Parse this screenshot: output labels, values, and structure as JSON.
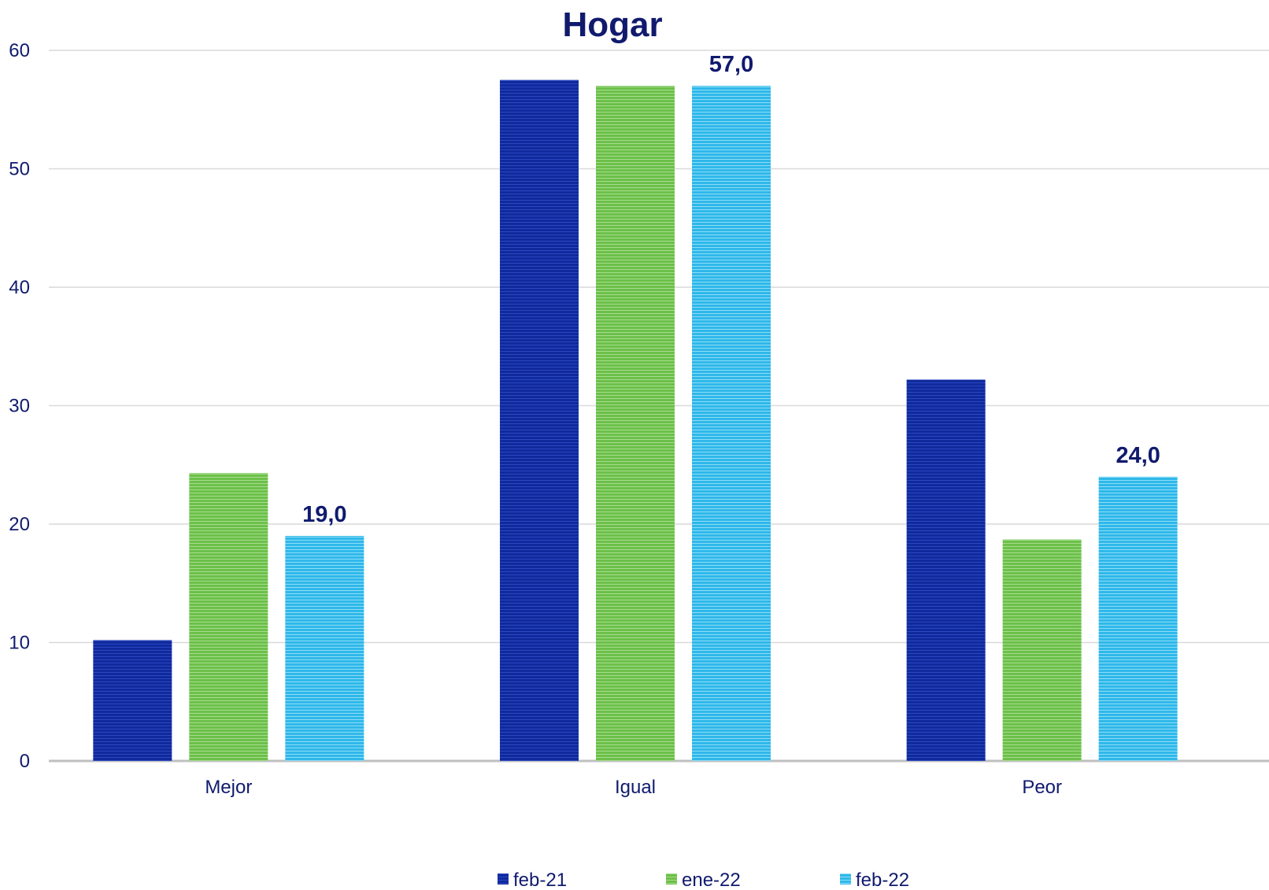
{
  "chart_data": {
    "type": "bar",
    "title": "Hogar",
    "xlabel": "",
    "ylabel": "",
    "ylim": [
      0,
      60
    ],
    "yticks": [
      "0",
      "10",
      "20",
      "30",
      "40",
      "50",
      "60"
    ],
    "categories": [
      "Mejor",
      "Igual",
      "Peor"
    ],
    "series": [
      {
        "name": "feb-21",
        "color": "#102a9c",
        "values": [
          10.2,
          57.5,
          32.2
        ],
        "labels": [
          "",
          "",
          ""
        ]
      },
      {
        "name": "ene-22",
        "color": "#6cc04a",
        "values": [
          24.3,
          57.0,
          18.7
        ],
        "labels": [
          "",
          "",
          ""
        ]
      },
      {
        "name": "feb-22",
        "color": "#2fb8ea",
        "values": [
          19.0,
          57.0,
          24.0
        ],
        "labels": [
          "19,0",
          "57,0",
          "24,0"
        ]
      }
    ],
    "grid": true,
    "legend_position": "bottom"
  }
}
